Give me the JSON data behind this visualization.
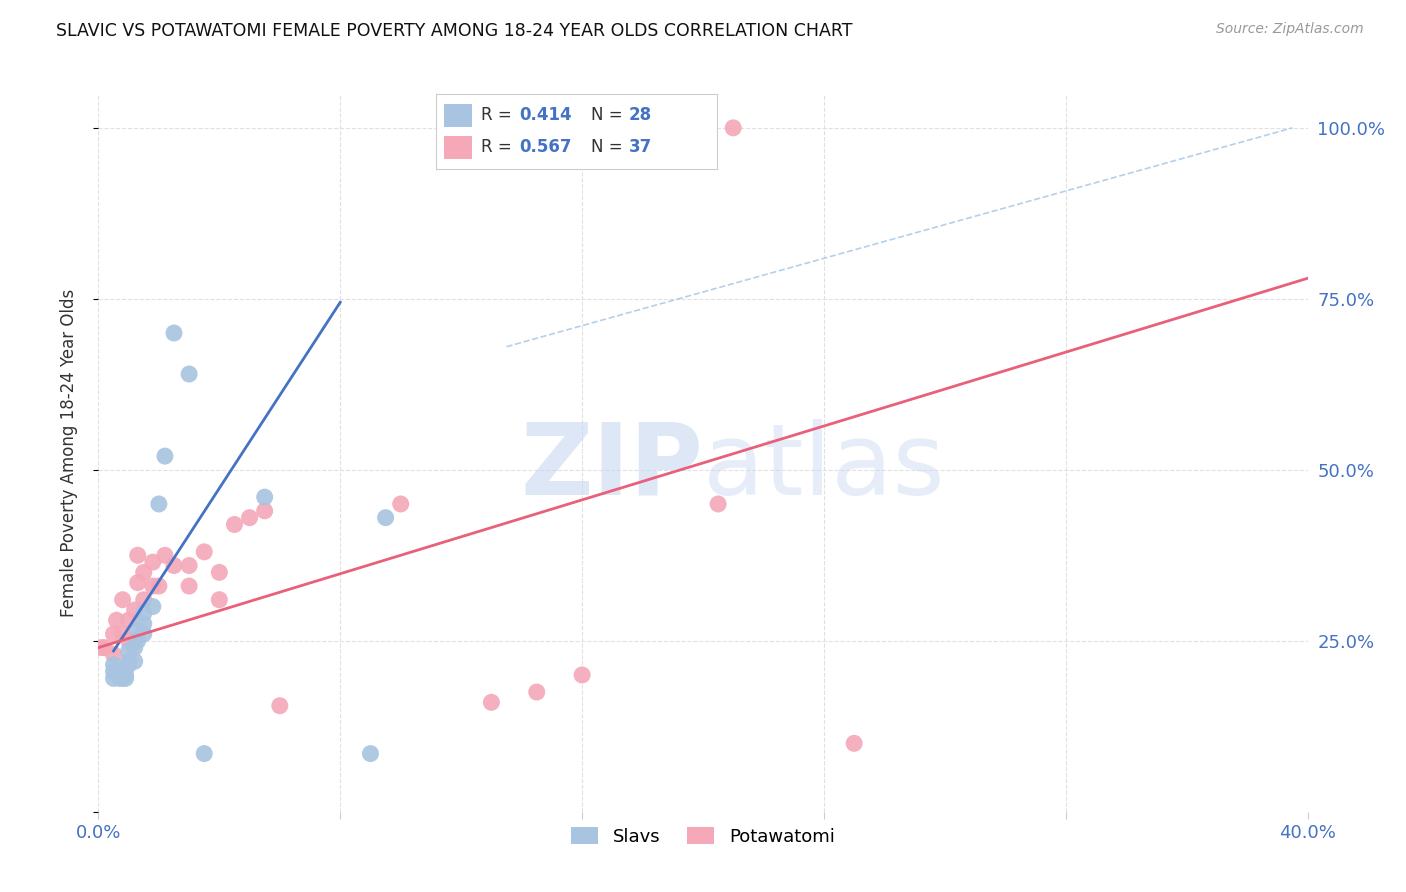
{
  "title": "SLAVIC VS POTAWATOMI FEMALE POVERTY AMONG 18-24 YEAR OLDS CORRELATION CHART",
  "source": "Source: ZipAtlas.com",
  "ylabel": "Female Poverty Among 18-24 Year Olds",
  "x_min": 0.0,
  "x_max": 0.4,
  "y_min": 0.0,
  "y_max": 1.05,
  "slavs_R": 0.414,
  "slavs_N": 28,
  "potawatomi_R": 0.567,
  "potawatomi_N": 37,
  "slavs_color": "#A8C4E0",
  "potawatomi_color": "#F4A8B8",
  "slavs_line_color": "#4472C4",
  "potawatomi_line_color": "#E8607A",
  "diag_line_color": "#A8C8E8",
  "watermark_color": "#C8D8F0",
  "background_color": "#FFFFFF",
  "grid_color": "#E0E0E0",
  "slavs_x": [
    0.005,
    0.005,
    0.005,
    0.007,
    0.007,
    0.008,
    0.008,
    0.009,
    0.009,
    0.01,
    0.01,
    0.01,
    0.012,
    0.012,
    0.013,
    0.013,
    0.015,
    0.015,
    0.015,
    0.018,
    0.02,
    0.022,
    0.025,
    0.03,
    0.035,
    0.055,
    0.09,
    0.095
  ],
  "slavs_y": [
    0.195,
    0.205,
    0.215,
    0.195,
    0.205,
    0.195,
    0.205,
    0.195,
    0.2,
    0.215,
    0.22,
    0.235,
    0.22,
    0.24,
    0.25,
    0.265,
    0.26,
    0.275,
    0.29,
    0.3,
    0.45,
    0.52,
    0.7,
    0.64,
    0.085,
    0.46,
    0.085,
    0.43
  ],
  "potawatomi_x": [
    0.001,
    0.002,
    0.005,
    0.005,
    0.006,
    0.008,
    0.008,
    0.01,
    0.01,
    0.012,
    0.012,
    0.013,
    0.013,
    0.015,
    0.015,
    0.018,
    0.018,
    0.02,
    0.022,
    0.025,
    0.03,
    0.03,
    0.035,
    0.04,
    0.04,
    0.045,
    0.05,
    0.055,
    0.06,
    0.1,
    0.13,
    0.145,
    0.16,
    0.195,
    0.205,
    0.21,
    0.25
  ],
  "potawatomi_y": [
    0.24,
    0.24,
    0.23,
    0.26,
    0.28,
    0.26,
    0.31,
    0.25,
    0.28,
    0.25,
    0.295,
    0.335,
    0.375,
    0.31,
    0.35,
    0.33,
    0.365,
    0.33,
    0.375,
    0.36,
    0.33,
    0.36,
    0.38,
    0.31,
    0.35,
    0.42,
    0.43,
    0.44,
    0.155,
    0.45,
    0.16,
    0.175,
    0.2,
    1.0,
    0.45,
    1.0,
    0.1
  ],
  "blue_line_x": [
    0.005,
    0.08
  ],
  "blue_line_y": [
    0.235,
    0.745
  ],
  "pink_line_x": [
    0.0,
    0.4
  ],
  "pink_line_y": [
    0.24,
    0.78
  ],
  "diag_line_x": [
    0.135,
    0.395
  ],
  "diag_line_y": [
    0.68,
    1.0
  ]
}
